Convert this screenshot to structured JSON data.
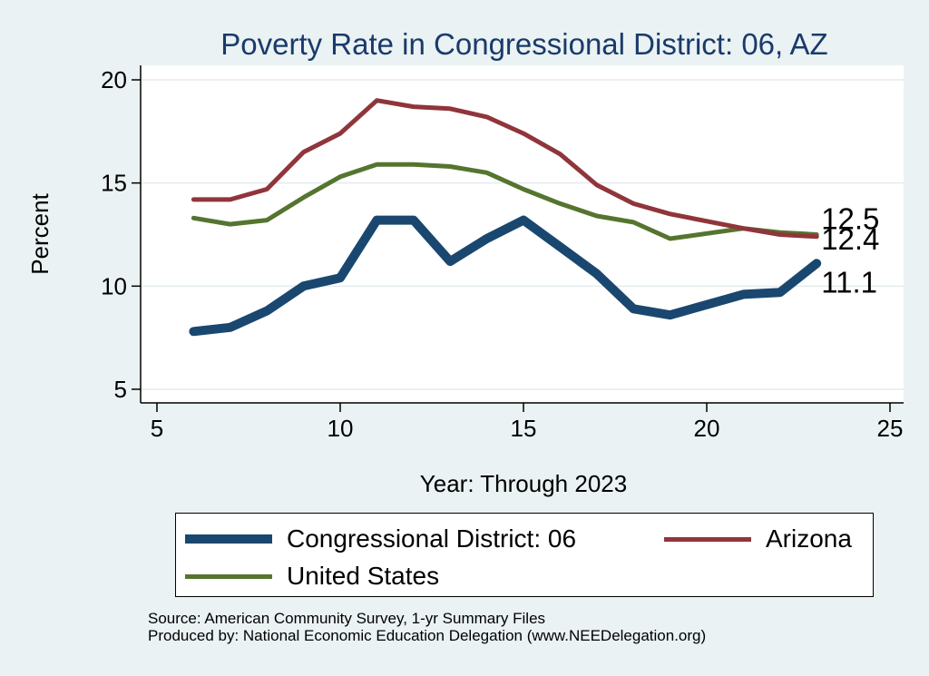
{
  "chart_data": {
    "type": "line",
    "title": "Poverty Rate in Congressional District:  06, AZ",
    "xlabel": "Year: Through 2023",
    "ylabel": "Percent",
    "xlim": [
      5,
      25
    ],
    "ylim": [
      5,
      20
    ],
    "xticks": [
      5,
      10,
      15,
      20,
      25
    ],
    "yticks": [
      5,
      10,
      15,
      20
    ],
    "grid": "horizontal",
    "legend_position": "bottom",
    "series": [
      {
        "name": "Congressional District:  06",
        "color": "#1a476f",
        "x": [
          6,
          7,
          8,
          9,
          10,
          11,
          12,
          13,
          14,
          15,
          16,
          17,
          18,
          19,
          21,
          22,
          23
        ],
        "y": [
          7.8,
          8.0,
          8.8,
          10.0,
          10.4,
          13.2,
          13.2,
          11.2,
          12.3,
          13.2,
          11.9,
          10.6,
          8.9,
          8.6,
          9.6,
          9.7,
          11.1
        ],
        "end_label": "11.1"
      },
      {
        "name": "Arizona",
        "color": "#90353b",
        "x": [
          6,
          7,
          8,
          9,
          10,
          11,
          12,
          13,
          14,
          15,
          16,
          17,
          18,
          19,
          21,
          22,
          23
        ],
        "y": [
          14.2,
          14.2,
          14.7,
          16.5,
          17.4,
          19.0,
          18.7,
          18.6,
          18.2,
          17.4,
          16.4,
          14.9,
          14.0,
          13.5,
          12.8,
          12.5,
          12.4
        ],
        "end_label": "12.4"
      },
      {
        "name": "United States",
        "color": "#55752f",
        "x": [
          6,
          7,
          8,
          9,
          10,
          11,
          12,
          13,
          14,
          15,
          16,
          17,
          18,
          19,
          21,
          22,
          23
        ],
        "y": [
          13.3,
          13.0,
          13.2,
          14.3,
          15.3,
          15.9,
          15.9,
          15.8,
          15.5,
          14.7,
          14.0,
          13.4,
          13.1,
          12.3,
          12.8,
          12.6,
          12.5
        ],
        "end_label": "12.5"
      }
    ]
  },
  "legend": {
    "items": [
      "Congressional District:  06",
      "Arizona",
      "United States"
    ]
  },
  "source": {
    "line1": "Source: American Community Survey, 1-yr Summary Files",
    "line2": "Produced by: National Economic Education Delegation (www.NEEDelegation.org)"
  }
}
